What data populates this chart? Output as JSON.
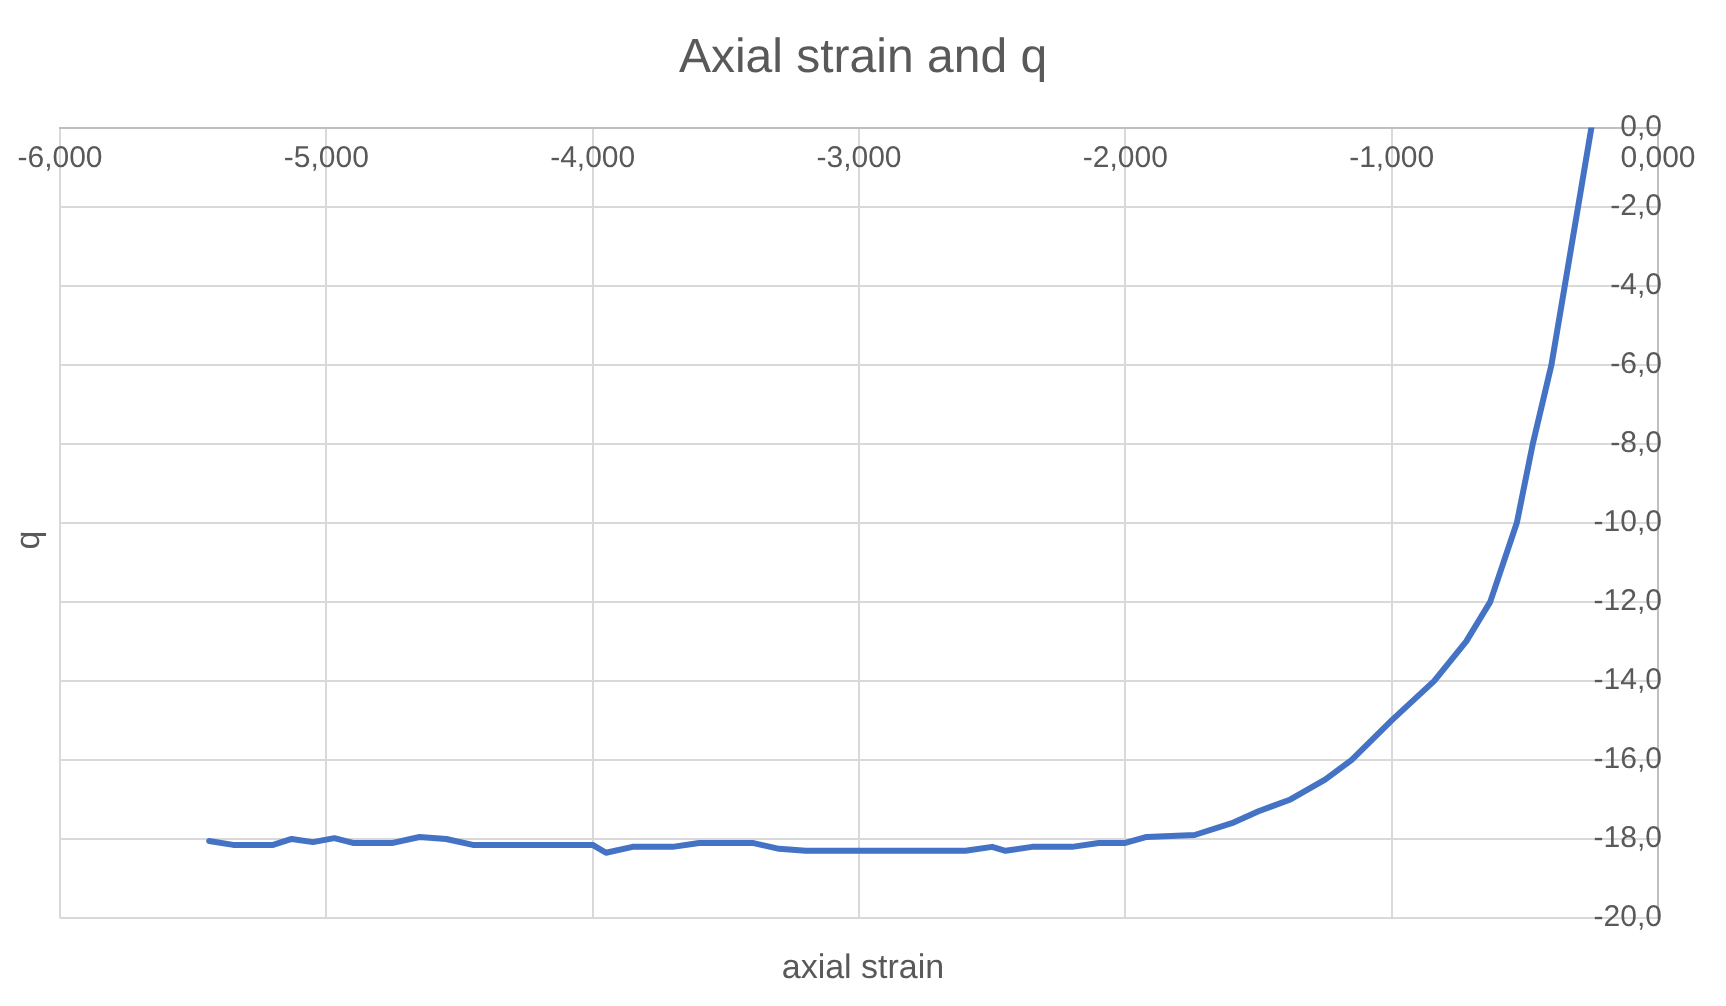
{
  "chart_data": {
    "type": "line",
    "title": "Axial strain and q",
    "xlabel": "axial strain",
    "ylabel": "q",
    "xlim": [
      -6,
      0
    ],
    "ylim": [
      -20,
      0
    ],
    "xticks": [
      {
        "value": -6,
        "label": "-6,000"
      },
      {
        "value": -5,
        "label": "-5,000"
      },
      {
        "value": -4,
        "label": "-4,000"
      },
      {
        "value": -3,
        "label": "-3,000"
      },
      {
        "value": -2,
        "label": "-2,000"
      },
      {
        "value": -1,
        "label": "-1,000"
      },
      {
        "value": 0,
        "label": "0,000"
      }
    ],
    "yticks": [
      {
        "value": 0,
        "label": "0,0"
      },
      {
        "value": -2,
        "label": "-2,0"
      },
      {
        "value": -4,
        "label": "-4,0"
      },
      {
        "value": -6,
        "label": "-6,0"
      },
      {
        "value": -8,
        "label": "-8,0"
      },
      {
        "value": -10,
        "label": "-10,0"
      },
      {
        "value": -12,
        "label": "-12,0"
      },
      {
        "value": -14,
        "label": "-14,0"
      },
      {
        "value": -16,
        "label": "-16,0"
      },
      {
        "value": -18,
        "label": "-18,0"
      },
      {
        "value": -20,
        "label": "-20,0"
      }
    ],
    "grid": true,
    "legend": false,
    "marker": "none",
    "line_style": "solid",
    "series": [
      {
        "color": "#4472c4",
        "x": [
          -5.44,
          -5.35,
          -5.2,
          -5.13,
          -5.05,
          -4.97,
          -4.9,
          -4.75,
          -4.65,
          -4.55,
          -4.45,
          -4.0,
          -3.95,
          -3.85,
          -3.7,
          -3.6,
          -3.4,
          -3.3,
          -3.2,
          -2.6,
          -2.5,
          -2.45,
          -2.35,
          -2.2,
          -2.1,
          -2.0,
          -1.92,
          -1.74,
          -1.6,
          -1.5,
          -1.38,
          -1.25,
          -1.15,
          -1.0,
          -0.84,
          -0.72,
          -0.63,
          -0.53,
          -0.47,
          -0.4,
          -0.35,
          -0.3,
          -0.25
        ],
        "values": [
          -18.05,
          -18.15,
          -18.15,
          -18.0,
          -18.08,
          -17.98,
          -18.1,
          -18.1,
          -17.95,
          -18.0,
          -18.15,
          -18.15,
          -18.35,
          -18.2,
          -18.2,
          -18.1,
          -18.1,
          -18.25,
          -18.3,
          -18.3,
          -18.2,
          -18.3,
          -18.2,
          -18.2,
          -18.1,
          -18.1,
          -17.95,
          -17.9,
          -17.6,
          -17.3,
          -17.0,
          -16.5,
          -16.0,
          -15.0,
          -14.0,
          -13.0,
          -12.0,
          -10.0,
          -8.0,
          -6.0,
          -4.0,
          -2.0,
          0
        ]
      }
    ]
  }
}
